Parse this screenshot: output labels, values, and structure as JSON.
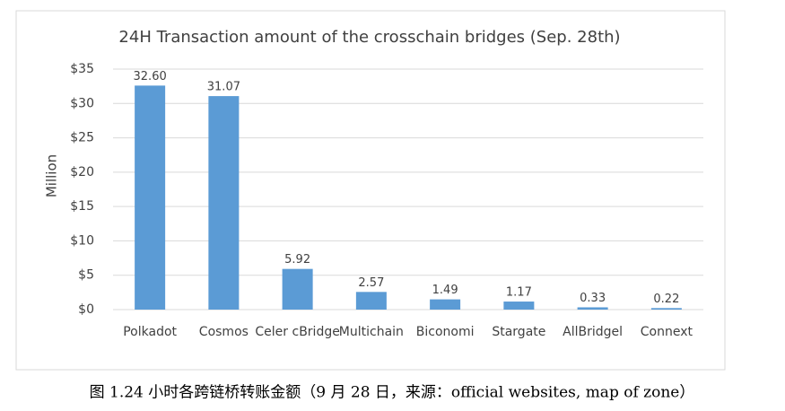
{
  "chart_data": {
    "type": "bar",
    "title": "24H Transaction amount of the crosschain bridges (Sep. 28th)",
    "y_label": "Million",
    "categories": [
      "Polkadot",
      "Cosmos",
      "Celer cBridge",
      "Multichain",
      "Biconomi",
      "Stargate",
      "AllBridgel",
      "Connext"
    ],
    "values": [
      32.6,
      31.07,
      5.92,
      2.57,
      1.49,
      1.17,
      0.33,
      0.22
    ],
    "value_labels": [
      "32.60",
      "31.07",
      "5.92",
      "2.57",
      "1.49",
      "1.17",
      "0.33",
      "0.22"
    ],
    "color": "#5b9bd5",
    "ylim": [
      0,
      35
    ],
    "yticks": [
      {
        "value": 0,
        "label": "$0"
      },
      {
        "value": 5,
        "label": "$5"
      },
      {
        "value": 10,
        "label": "$10"
      },
      {
        "value": 15,
        "label": "$15"
      },
      {
        "value": 20,
        "label": "$20"
      },
      {
        "value": 25,
        "label": "$25"
      },
      {
        "value": 30,
        "label": "$30"
      },
      {
        "value": 35,
        "label": "$35"
      }
    ],
    "grid": true,
    "caption": "图 1.24 小时各跨链桥转账金额（9 月 28 日，来源：official websites, map of zone）"
  }
}
